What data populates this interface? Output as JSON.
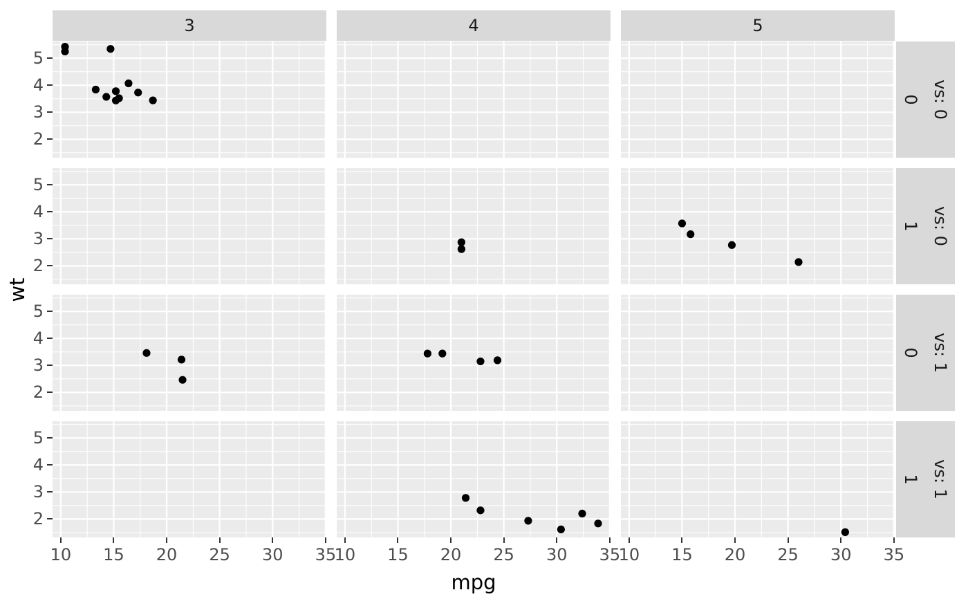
{
  "chart_data": {
    "type": "scatter",
    "title": "",
    "xlabel": "mpg",
    "ylabel": "wt",
    "legend": "none",
    "grid": "on",
    "facet": {
      "col_labels": [
        "3",
        "4",
        "5"
      ],
      "row_labels": [
        {
          "outer": "vs: 0",
          "inner": "0"
        },
        {
          "outer": "vs: 0",
          "inner": "1"
        },
        {
          "outer": "vs: 1",
          "inner": "0"
        },
        {
          "outer": "vs: 1",
          "inner": "1"
        }
      ]
    },
    "x_ticks": [
      10,
      15,
      20,
      25,
      30,
      35
    ],
    "y_ticks": [
      2,
      3,
      4,
      5
    ],
    "x_minor": [
      12.5,
      17.5,
      22.5,
      27.5,
      32.5
    ],
    "y_minor": [
      1.5,
      2.5,
      3.5,
      4.5,
      5.5
    ],
    "x_domain": [
      9.225,
      35.075
    ],
    "y_domain": [
      1.3174,
      5.6196
    ],
    "panels": [
      {
        "row": 0,
        "col": 0,
        "points": [
          [
            18.7,
            3.44
          ],
          [
            14.3,
            3.57
          ],
          [
            16.4,
            4.07
          ],
          [
            17.3,
            3.73
          ],
          [
            15.2,
            3.78
          ],
          [
            10.4,
            5.25
          ],
          [
            10.4,
            5.424
          ],
          [
            14.7,
            5.345
          ],
          [
            15.5,
            3.52
          ],
          [
            15.2,
            3.435
          ],
          [
            13.3,
            3.84
          ]
        ]
      },
      {
        "row": 0,
        "col": 1,
        "points": []
      },
      {
        "row": 0,
        "col": 2,
        "points": []
      },
      {
        "row": 1,
        "col": 0,
        "points": []
      },
      {
        "row": 1,
        "col": 1,
        "points": [
          [
            21.0,
            2.62
          ],
          [
            21.0,
            2.875
          ]
        ]
      },
      {
        "row": 1,
        "col": 2,
        "points": [
          [
            15.0,
            3.57
          ],
          [
            15.8,
            3.17
          ],
          [
            19.7,
            2.77
          ],
          [
            26.0,
            2.14
          ]
        ]
      },
      {
        "row": 2,
        "col": 0,
        "points": [
          [
            18.1,
            3.46
          ],
          [
            21.4,
            3.215
          ],
          [
            21.5,
            2.465
          ]
        ]
      },
      {
        "row": 2,
        "col": 1,
        "points": [
          [
            17.8,
            3.44
          ],
          [
            19.2,
            3.44
          ],
          [
            22.8,
            3.15
          ],
          [
            24.4,
            3.19
          ]
        ]
      },
      {
        "row": 2,
        "col": 2,
        "points": []
      },
      {
        "row": 3,
        "col": 0,
        "points": []
      },
      {
        "row": 3,
        "col": 1,
        "points": [
          [
            21.4,
            2.78
          ],
          [
            22.8,
            2.32
          ],
          [
            27.3,
            1.935
          ],
          [
            30.4,
            1.615
          ],
          [
            32.4,
            2.2
          ],
          [
            33.9,
            1.835
          ]
        ]
      },
      {
        "row": 3,
        "col": 2,
        "points": [
          [
            30.4,
            1.513
          ]
        ]
      }
    ],
    "colors": {
      "background": "#FFFFFF",
      "panel_bg": "#EBEBEB",
      "strip_bg": "#D9D9D9",
      "grid": "#FFFFFF",
      "point": "#000000",
      "axis_text": "#4D4D4D",
      "strip_text": "#1A1A1A",
      "tick_mark": "#333333",
      "axis_title": "#000000"
    }
  }
}
